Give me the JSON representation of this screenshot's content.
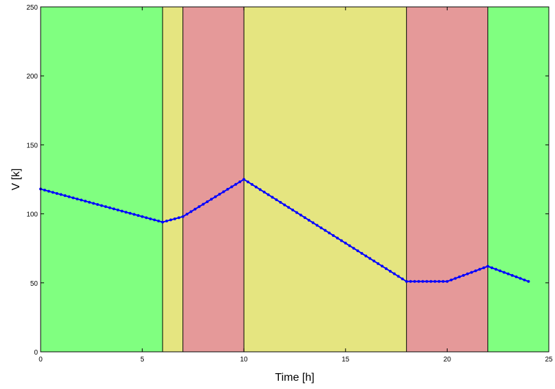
{
  "chart_data": {
    "type": "line",
    "title": "",
    "xlabel": "Time [h]",
    "ylabel": "V [k]",
    "xlim": [
      0,
      25
    ],
    "ylim": [
      0,
      250
    ],
    "xticks": [
      0,
      5,
      10,
      15,
      20,
      25
    ],
    "yticks": [
      0,
      50,
      100,
      150,
      200,
      250
    ],
    "grid": false,
    "background_bands": [
      {
        "x_start": 0,
        "x_end": 6,
        "color": "#80ff80"
      },
      {
        "x_start": 6,
        "x_end": 7,
        "color": "#e5e580"
      },
      {
        "x_start": 7,
        "x_end": 10,
        "color": "#e59999"
      },
      {
        "x_start": 10,
        "x_end": 18,
        "color": "#e5e580"
      },
      {
        "x_start": 18,
        "x_end": 22,
        "color": "#e59999"
      },
      {
        "x_start": 22,
        "x_end": 25,
        "color": "#80ff80"
      }
    ],
    "series": [
      {
        "color": "#0000ff",
        "x": [
          0,
          6,
          7,
          10,
          18,
          20,
          22,
          24
        ],
        "y": [
          118,
          94,
          98,
          125,
          51,
          51,
          62,
          51
        ]
      }
    ]
  }
}
